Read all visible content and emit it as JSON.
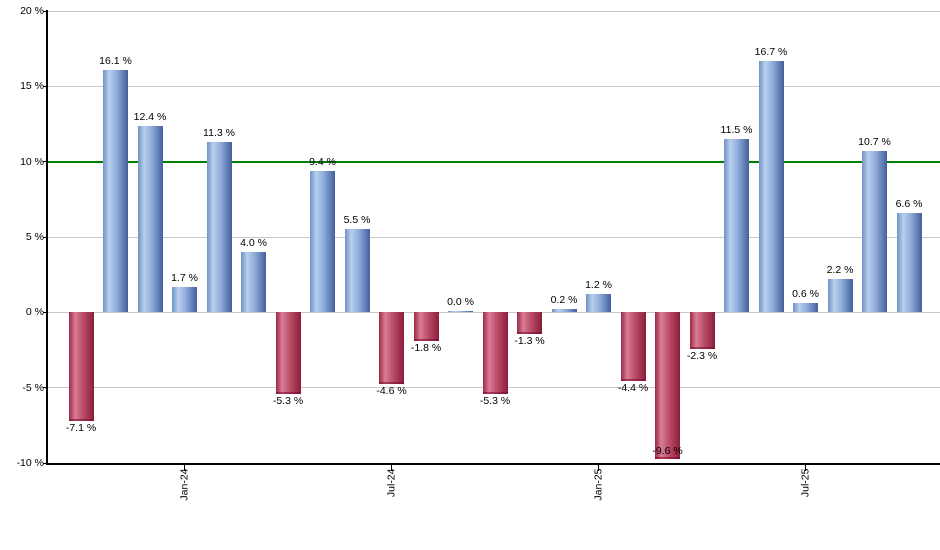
{
  "chart_data": {
    "type": "bar",
    "title": "",
    "xlabel": "",
    "ylabel": "",
    "unit": "%",
    "ylim": [
      -10,
      20
    ],
    "grid": true,
    "legend": null,
    "y_ticks": [
      {
        "value": 20,
        "label": "20 %"
      },
      {
        "value": 15,
        "label": "15 %"
      },
      {
        "value": 10,
        "label": "10 %"
      },
      {
        "value": 5,
        "label": "5 %"
      },
      {
        "value": 0,
        "label": "0 %"
      },
      {
        "value": -5,
        "label": "-5 %"
      },
      {
        "value": -10,
        "label": "-10 %"
      }
    ],
    "values": [
      -7.1,
      16.1,
      12.4,
      1.7,
      11.3,
      4.0,
      -5.3,
      9.4,
      5.5,
      -4.6,
      -1.8,
      0.0,
      -5.3,
      -1.3,
      0.2,
      1.2,
      -4.4,
      -9.6,
      -2.3,
      11.5,
      16.7,
      0.6,
      2.2,
      10.7,
      6.6
    ],
    "bar_labels": [
      "-7.1 %",
      "16.1 %",
      "12.4 %",
      "1.7 %",
      "11.3 %",
      "4.0 %",
      "-5.3 %",
      "9.4 %",
      "5.5 %",
      "-4.6 %",
      "-1.8 %",
      "0.0 %",
      "-5.3 %",
      "-1.3 %",
      "0.2 %",
      "1.2 %",
      "-4.4 %",
      "-9.6 %",
      "-2.3 %",
      "11.5 %",
      "16.7 %",
      "0.6 %",
      "2.2 %",
      "10.7 %",
      "6.6 %"
    ],
    "x_ticks": [
      {
        "index": 3,
        "label": "Jan-24"
      },
      {
        "index": 9,
        "label": "Jul-24"
      },
      {
        "index": 15,
        "label": "Jan-25"
      },
      {
        "index": 21,
        "label": "Jul-25"
      }
    ],
    "reference_line": {
      "value": 10,
      "color": "#008000"
    },
    "colors": {
      "positive_gradient": [
        "#6f92c6",
        "#b9cfee",
        "#8eabda",
        "#44609c"
      ],
      "negative_gradient": [
        "#9e2946",
        "#d87d95",
        "#bc4e6a",
        "#8c1d3c"
      ],
      "gridline": "#c8c8c8",
      "axis": "#000000",
      "label_text": "#000000",
      "background": "#ffffff"
    }
  }
}
